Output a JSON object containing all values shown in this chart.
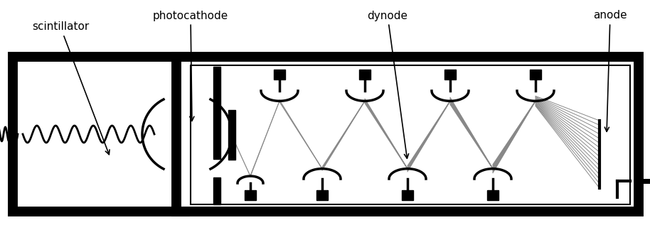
{
  "bg_color": "#ffffff",
  "figsize": [
    9.14,
    3.17
  ],
  "dpi": 100,
  "labels": {
    "scintillator": "scintillator",
    "photocathode": "photocathode",
    "dynode": "dynode",
    "anode": "anode"
  }
}
